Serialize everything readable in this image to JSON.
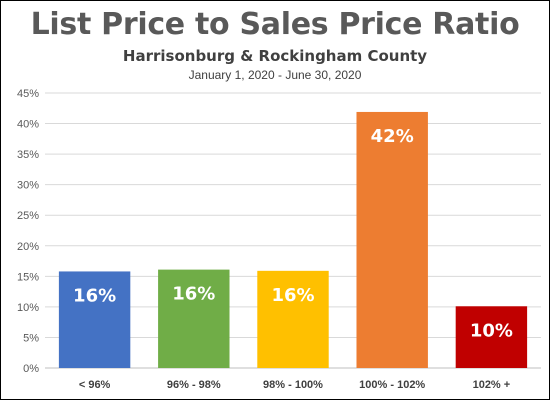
{
  "chart_data": {
    "type": "bar",
    "title": "List Price to Sales Price Ratio",
    "subtitle": "Harrisonburg & Rockingham County",
    "date_range": "January 1, 2020 - June 30, 2020",
    "categories": [
      "< 96%",
      "96% - 98%",
      "98% - 100%",
      "100% - 102%",
      "102% +"
    ],
    "values": [
      15.8,
      16.1,
      15.9,
      41.9,
      10.1
    ],
    "data_labels": [
      "16%",
      "16%",
      "16%",
      "42%",
      "10%"
    ],
    "colors": [
      "#4472C4",
      "#70AD47",
      "#FFC000",
      "#ED7D31",
      "#C00000"
    ],
    "y_ticks": [
      "0%",
      "5%",
      "10%",
      "15%",
      "20%",
      "25%",
      "30%",
      "35%",
      "40%",
      "45%"
    ],
    "ylim": [
      0,
      45
    ],
    "grid": true,
    "legend": "none",
    "xlabel": "",
    "ylabel": ""
  }
}
